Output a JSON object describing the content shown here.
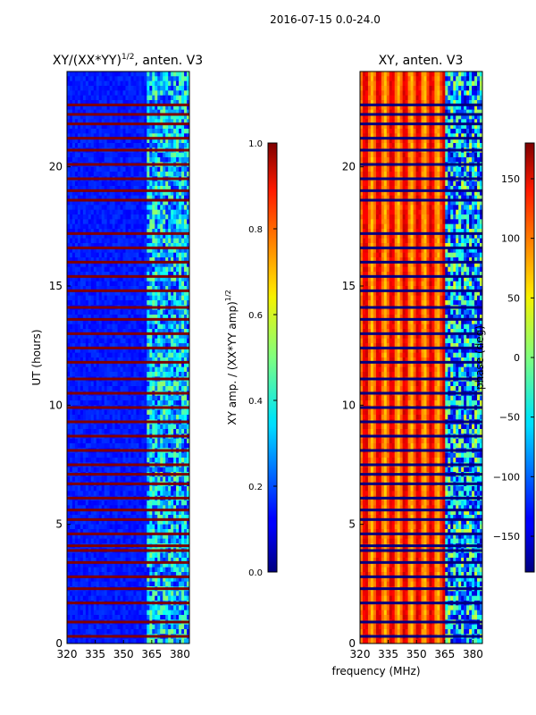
{
  "figure_title": "2016-07-15 0.0-24.0",
  "xlabel_shared": "frequency (MHz)",
  "chart_data": [
    {
      "type": "heatmap",
      "title": "XY/(XX*YY)",
      "title_exp": "1/2",
      "title_suffix": ", anten. V3",
      "xlabel": "",
      "ylabel": "UT (hours)",
      "xlim": [
        320,
        385
      ],
      "ylim": [
        0,
        24
      ],
      "xticks": [
        320,
        335,
        350,
        365,
        380
      ],
      "yticks": [
        0,
        5,
        10,
        15,
        20
      ],
      "colorbar": {
        "label": "XY amp. / (XX*YY amp)",
        "label_exp": "1/2",
        "range": [
          0.0,
          1.0
        ],
        "ticks": [
          "0.0",
          "0.2",
          "0.4",
          "0.6",
          "0.8",
          "1.0"
        ],
        "tick_values": [
          0.0,
          0.2,
          0.4,
          0.6,
          0.8,
          1.0
        ]
      },
      "colormap": "jet",
      "flagged_hours": [
        0.3,
        0.9,
        1.7,
        2.3,
        2.8,
        3.4,
        3.9,
        4.1,
        4.6,
        5.2,
        5.6,
        6.1,
        6.7,
        7.1,
        7.5,
        8.1,
        8.7,
        9.3,
        9.9,
        10.5,
        11.1,
        11.8,
        12.4,
        13.0,
        13.6,
        14.1,
        14.8,
        15.4,
        16.0,
        16.6,
        17.2,
        18.6,
        19.0,
        19.5,
        20.1,
        20.7,
        21.2,
        21.8,
        22.2,
        22.6
      ],
      "typical_background": 0.12,
      "high_region_mhz": [
        362,
        385
      ],
      "high_region_value": 0.4
    },
    {
      "type": "heatmap",
      "title": "XY, anten. V3",
      "xlabel": "",
      "ylabel": "",
      "xlim": [
        320,
        385
      ],
      "ylim": [
        0,
        24
      ],
      "xticks": [
        320,
        335,
        350,
        365,
        380
      ],
      "yticks": [
        0,
        5,
        10,
        15,
        20
      ],
      "colorbar": {
        "label": "phase (deg)",
        "range": [
          -180,
          180
        ],
        "ticks": [
          "−150",
          "−100",
          "−50",
          "0",
          "50",
          "100",
          "150"
        ],
        "tick_values": [
          -150,
          -100,
          -50,
          0,
          50,
          100,
          150
        ]
      },
      "colormap": "jet",
      "flagged_hours": [
        0.3,
        0.9,
        1.7,
        2.3,
        2.8,
        3.4,
        3.9,
        4.1,
        4.6,
        5.2,
        5.6,
        6.1,
        6.7,
        7.1,
        7.5,
        8.1,
        8.7,
        9.3,
        9.9,
        10.5,
        11.1,
        11.8,
        12.4,
        13.0,
        13.6,
        14.1,
        14.8,
        15.4,
        16.0,
        16.6,
        17.2,
        18.6,
        19.0,
        19.5,
        20.1,
        20.7,
        21.2,
        21.8,
        22.2,
        22.6
      ],
      "typical_phase": 110,
      "transition_mhz": 365
    }
  ]
}
